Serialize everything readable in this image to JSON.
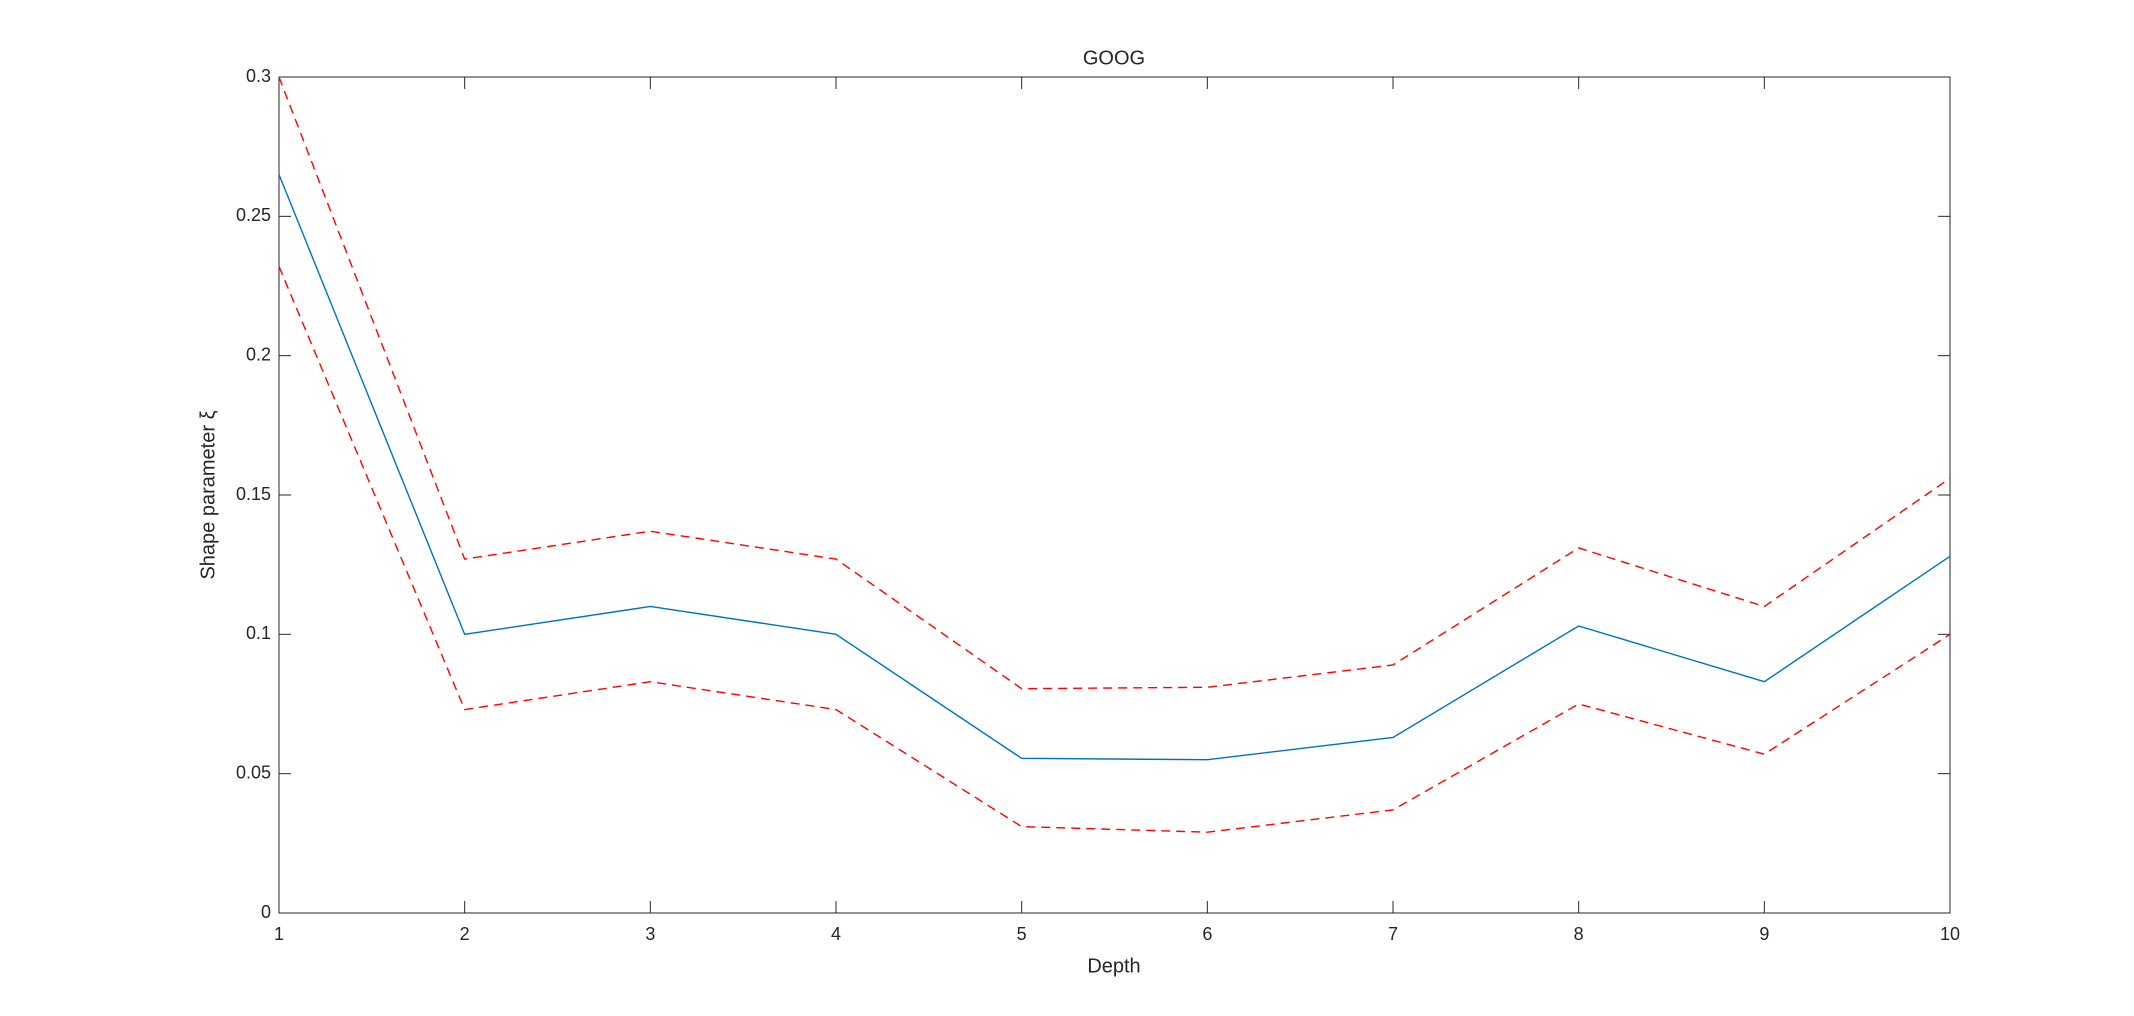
{
  "chart_data": {
    "type": "line",
    "title": "GOOG",
    "x_label": "Depth",
    "y_label": "Shape parameter ξ",
    "x": [
      1,
      2,
      3,
      4,
      5,
      6,
      7,
      8,
      9,
      10
    ],
    "series": [
      {
        "color": "#0072bd",
        "dashed": false,
        "values": [
          0.265,
          0.1,
          0.11,
          0.1,
          0.0555,
          0.055,
          0.063,
          0.103,
          0.083,
          0.128
        ]
      },
      {
        "color": "#ff0000",
        "dashed": true,
        "values": [
          0.3,
          0.127,
          0.137,
          0.127,
          0.0805,
          0.081,
          0.089,
          0.131,
          0.11,
          0.156
        ]
      },
      {
        "color": "#ff0000",
        "dashed": true,
        "values": [
          0.232,
          0.073,
          0.083,
          0.073,
          0.031,
          0.029,
          0.037,
          0.075,
          0.057,
          0.1
        ]
      }
    ],
    "xlim": [
      1,
      10
    ],
    "xticks": [
      1,
      2,
      3,
      4,
      5,
      6,
      7,
      8,
      9,
      10
    ],
    "ylim": [
      0,
      0.3
    ],
    "yticks": [
      0,
      0.05,
      0.1,
      0.15,
      0.2,
      0.25,
      0.3
    ],
    "grid": false
  }
}
